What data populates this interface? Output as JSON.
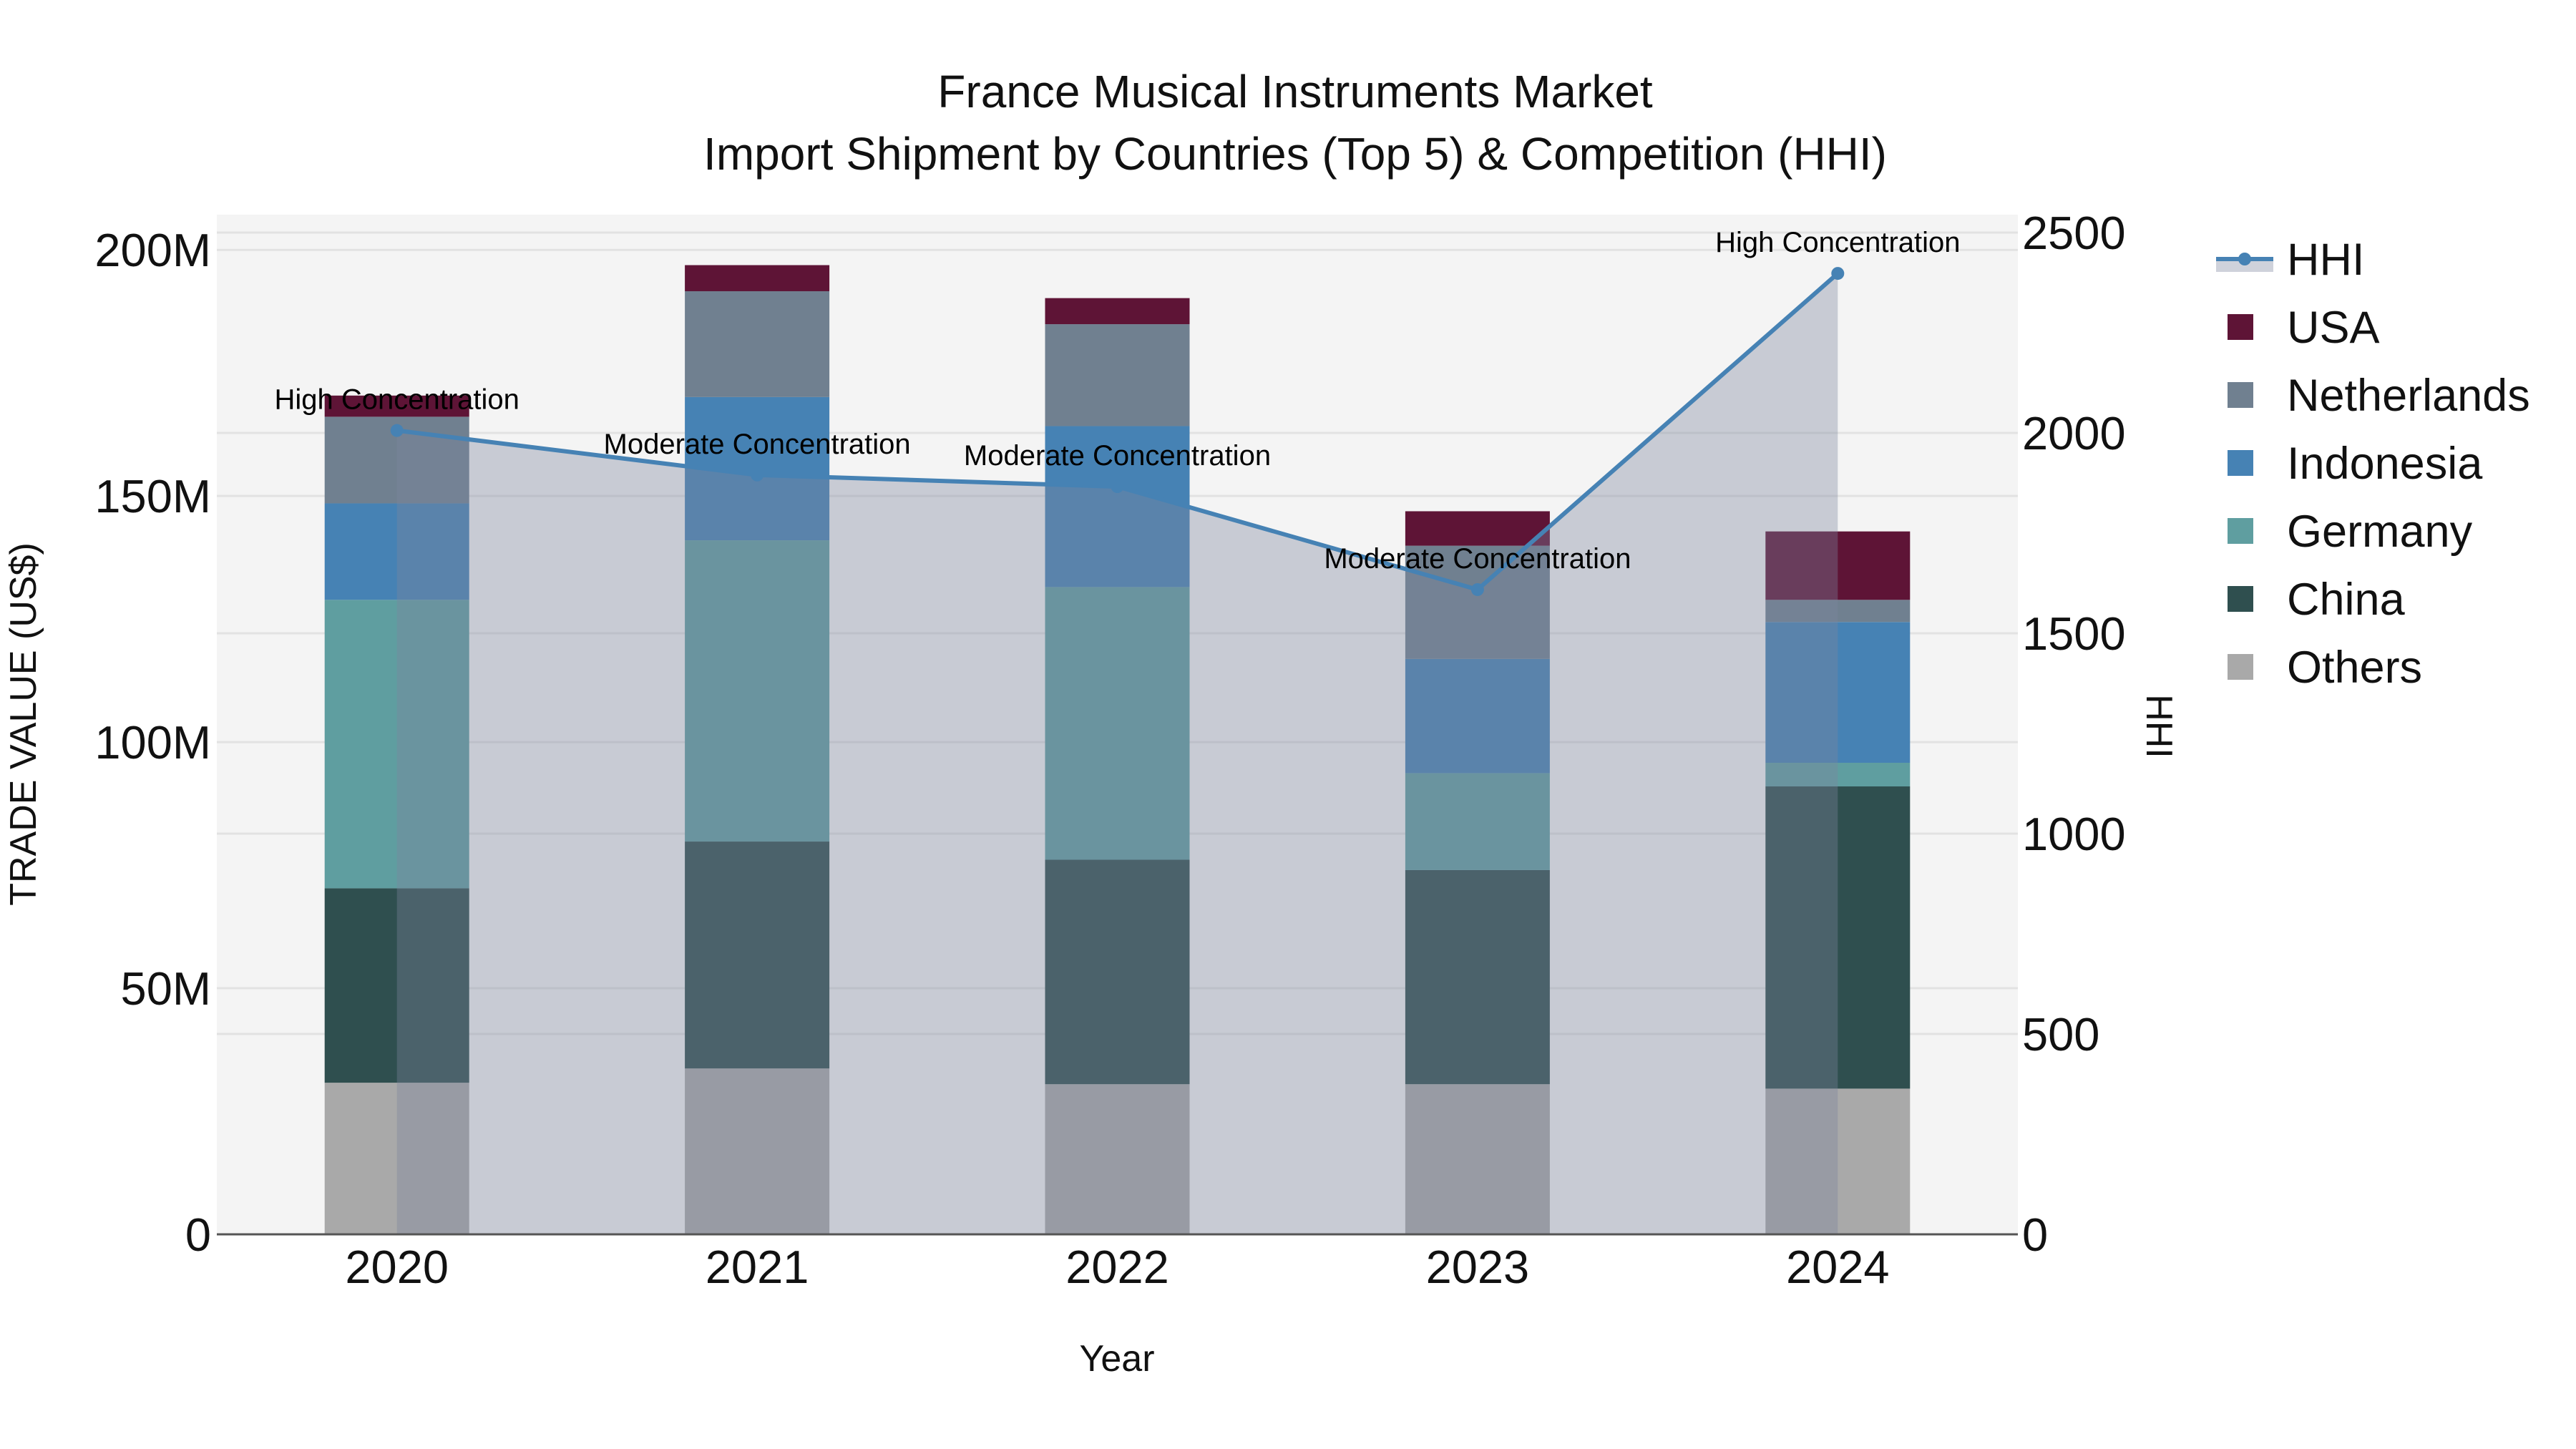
{
  "title": {
    "line1": "France Musical Instruments Market",
    "line2": "Import Shipment by Countries (Top 5) & Competition (HHI)"
  },
  "axes": {
    "x_title": "Year",
    "y_left_title": "TRADE VALUE (US$)",
    "y_right_title": "HHI",
    "y_left_ticks": [
      "0",
      "50M",
      "100M",
      "150M",
      "200M"
    ],
    "y_right_ticks": [
      "0",
      "500",
      "1000",
      "1500",
      "2000",
      "2500"
    ]
  },
  "legend": [
    {
      "label": "HHI",
      "type": "line",
      "color": "#4682b4"
    },
    {
      "label": "USA",
      "type": "bar",
      "color": "#5e1436"
    },
    {
      "label": "Netherlands",
      "type": "bar",
      "color": "#708090"
    },
    {
      "label": "Indonesia",
      "type": "bar",
      "color": "#4682b4"
    },
    {
      "label": "Germany",
      "type": "bar",
      "color": "#5f9ea0"
    },
    {
      "label": "China",
      "type": "bar",
      "color": "#2f4f4f"
    },
    {
      "label": "Others",
      "type": "bar",
      "color": "#a9a9a9"
    }
  ],
  "colors": {
    "plot_bg": "#f4f4f4",
    "grid": "#e2e2e2",
    "hhi_line": "#4682b4",
    "hhi_fill": "rgba(126,133,156,0.37)",
    "axis_line": "#555555"
  },
  "chart_data": {
    "type": "bar",
    "subtype": "stacked bar + line (secondary axis)",
    "title": "France Musical Instruments Market — Import Shipment by Countries (Top 5) & Competition (HHI)",
    "xlabel": "Year",
    "ylabel": "TRADE VALUE (US$)",
    "ylabel_right": "HHI",
    "ylim": [
      0,
      207000000
    ],
    "ylim_right": [
      0,
      2587
    ],
    "grid": true,
    "legend_position": "right",
    "categories": [
      "2020",
      "2021",
      "2022",
      "2023",
      "2024"
    ],
    "series": [
      {
        "name": "Others",
        "color": "#a9a9a9",
        "values": [
          30800000,
          33700000,
          30500000,
          30500000,
          29600000
        ]
      },
      {
        "name": "China",
        "color": "#2f4f4f",
        "values": [
          39500000,
          46100000,
          45600000,
          43500000,
          61400000
        ]
      },
      {
        "name": "Germany",
        "color": "#5f9ea0",
        "values": [
          58600000,
          61200000,
          55400000,
          19700000,
          4800000
        ]
      },
      {
        "name": "Indonesia",
        "color": "#4682b4",
        "values": [
          19600000,
          29100000,
          32700000,
          23200000,
          28600000
        ]
      },
      {
        "name": "Netherlands",
        "color": "#708090",
        "values": [
          17600000,
          21500000,
          20700000,
          23000000,
          4500000
        ]
      },
      {
        "name": "USA",
        "color": "#5e1436",
        "values": [
          4300000,
          5300000,
          5300000,
          7000000,
          13900000
        ]
      }
    ],
    "line_series": {
      "name": "HHI",
      "axis": "right",
      "color": "#4682b4",
      "fill": "tozeroy",
      "values": [
        2006,
        1895,
        1866,
        1609,
        2398
      ]
    },
    "annotations": [
      {
        "x": "2020",
        "text": "High Concentration"
      },
      {
        "x": "2021",
        "text": "Moderate Concentration"
      },
      {
        "x": "2022",
        "text": "Moderate Concentration"
      },
      {
        "x": "2023",
        "text": "Moderate Concentration"
      },
      {
        "x": "2024",
        "text": "High Concentration"
      }
    ]
  }
}
